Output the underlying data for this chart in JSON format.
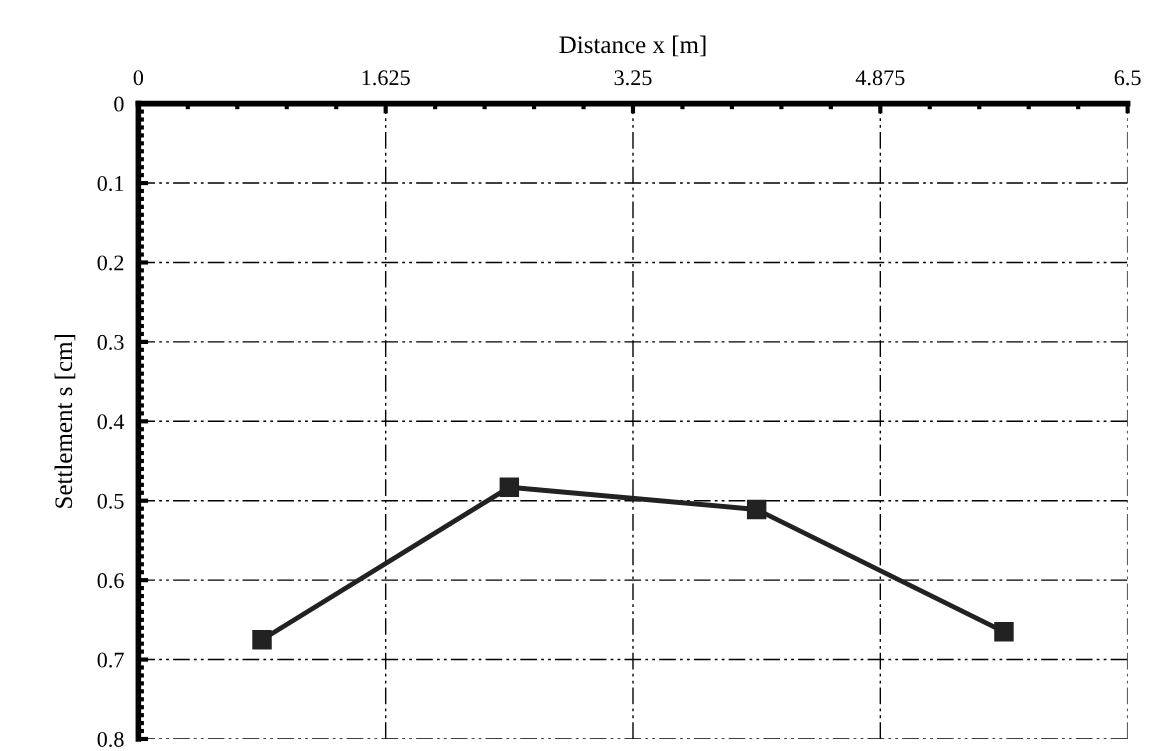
{
  "chart_data": {
    "type": "line",
    "xlabel": "Distance x [m]",
    "ylabel": "Settlement s [cm]",
    "x": [
      0.8125,
      2.4375,
      4.0625,
      5.6875
    ],
    "series": [
      {
        "color": "#222222",
        "values": [
          0.675,
          0.483,
          0.511,
          0.665
        ]
      }
    ],
    "xlim": [
      0,
      6.5
    ],
    "xticks": [
      0,
      1.625,
      3.25,
      4.875,
      6.5
    ],
    "ylim": [
      0.8,
      0
    ],
    "yticks": [
      0,
      0.1,
      0.2,
      0.3,
      0.4,
      0.5,
      0.6,
      0.7,
      0.8
    ],
    "grid": true,
    "marker": "square",
    "line_style": "solid"
  }
}
